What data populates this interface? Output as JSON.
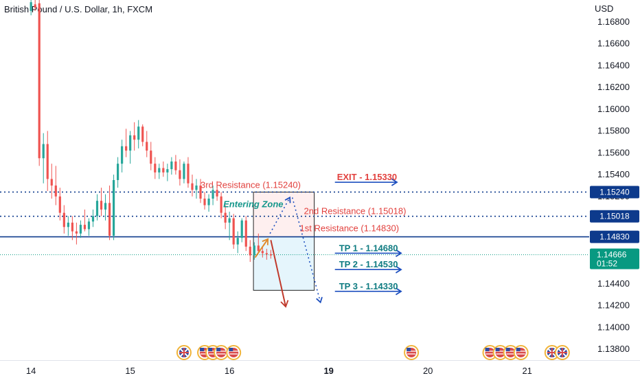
{
  "header": {
    "title": "British Pound / U.S. Dollar, 1h, FXCM"
  },
  "colors": {
    "up": "#26a69a",
    "down": "#ef5350",
    "navy": "#0d3a8c",
    "blue": "#1d4fbf",
    "red_text": "#e2413e",
    "teal_text": "#0f7c82",
    "price_tag": "#089981"
  },
  "chart_data": {
    "type": "candlestick",
    "currency_label": "USD",
    "ylim": [
      1.137,
      1.17
    ],
    "y_ticks": [
      "1.16800",
      "1.16600",
      "1.16400",
      "1.16200",
      "1.16000",
      "1.15800",
      "1.15600",
      "1.15400",
      "1.15200",
      "1.15000",
      "1.14800",
      "1.14600",
      "1.14400",
      "1.14200",
      "1.14000",
      "1.13800"
    ],
    "x_ticks": [
      {
        "label": "14",
        "x": 0
      },
      {
        "label": "15",
        "x": 24
      },
      {
        "label": "16",
        "x": 48
      },
      {
        "label": "19",
        "x": 72,
        "bold": true
      },
      {
        "label": "20",
        "x": 96
      },
      {
        "label": "21",
        "x": 120
      }
    ],
    "x_range": [
      -7.5,
      135
    ],
    "candles": [
      [
        1.169,
        1.17,
        1.1686,
        1.1698
      ],
      [
        1.1696,
        1.17,
        1.169,
        1.1693
      ],
      [
        1.1697,
        1.17,
        1.1548,
        1.1555
      ],
      [
        1.1555,
        1.1578,
        1.1532,
        1.1568
      ],
      [
        1.1568,
        1.158,
        1.1525,
        1.1536
      ],
      [
        1.1536,
        1.155,
        1.1518,
        1.153
      ],
      [
        1.153,
        1.1548,
        1.1512,
        1.152
      ],
      [
        1.152,
        1.1528,
        1.1498,
        1.1505
      ],
      [
        1.1505,
        1.1512,
        1.1486,
        1.1492
      ],
      [
        1.1492,
        1.1502,
        1.1484,
        1.1496
      ],
      [
        1.1496,
        1.1502,
        1.148,
        1.1488
      ],
      [
        1.1488,
        1.1496,
        1.1476,
        1.1486
      ],
      [
        1.1486,
        1.1498,
        1.1482,
        1.1494
      ],
      [
        1.1494,
        1.1508,
        1.1488,
        1.149
      ],
      [
        1.149,
        1.15,
        1.1484,
        1.1497
      ],
      [
        1.1497,
        1.1508,
        1.1492,
        1.1502
      ],
      [
        1.1502,
        1.1522,
        1.1498,
        1.1516
      ],
      [
        1.1516,
        1.1528,
        1.1502,
        1.1508
      ],
      [
        1.1508,
        1.1522,
        1.1498,
        1.1514
      ],
      [
        1.1514,
        1.153,
        1.148,
        1.1484
      ],
      [
        1.1484,
        1.154,
        1.148,
        1.1535
      ],
      [
        1.1535,
        1.1556,
        1.1528,
        1.155
      ],
      [
        1.155,
        1.1572,
        1.1542,
        1.1566
      ],
      [
        1.1566,
        1.1582,
        1.1556,
        1.1562
      ],
      [
        1.1562,
        1.158,
        1.155,
        1.1576
      ],
      [
        1.1576,
        1.1588,
        1.1562,
        1.1572
      ],
      [
        1.1572,
        1.159,
        1.1564,
        1.1584
      ],
      [
        1.1584,
        1.1586,
        1.1566,
        1.157
      ],
      [
        1.157,
        1.158,
        1.1556,
        1.1562
      ],
      [
        1.1562,
        1.157,
        1.1544,
        1.155
      ],
      [
        1.155,
        1.1556,
        1.1536,
        1.1542
      ],
      [
        1.1542,
        1.155,
        1.1536,
        1.1546
      ],
      [
        1.1546,
        1.1552,
        1.1538,
        1.1542
      ],
      [
        1.1542,
        1.155,
        1.1534,
        1.1545
      ],
      [
        1.1545,
        1.1556,
        1.154,
        1.1552
      ],
      [
        1.1552,
        1.1558,
        1.154,
        1.1544
      ],
      [
        1.1544,
        1.1554,
        1.153,
        1.1536
      ],
      [
        1.1536,
        1.1552,
        1.1532,
        1.155
      ],
      [
        1.155,
        1.1556,
        1.1528,
        1.1532
      ],
      [
        1.1532,
        1.154,
        1.152,
        1.1526
      ],
      [
        1.1526,
        1.1536,
        1.1518,
        1.153
      ],
      [
        1.153,
        1.1536,
        1.1514,
        1.1518
      ],
      [
        1.1518,
        1.1524,
        1.1508,
        1.1512
      ],
      [
        1.1512,
        1.1522,
        1.1506,
        1.1518
      ],
      [
        1.1518,
        1.153,
        1.1512,
        1.1526
      ],
      [
        1.1526,
        1.1534,
        1.1516,
        1.152
      ],
      [
        1.152,
        1.1524,
        1.15,
        1.1505
      ],
      [
        1.1505,
        1.1512,
        1.149,
        1.1496
      ],
      [
        1.1496,
        1.1506,
        1.148,
        1.15
      ],
      [
        1.15,
        1.1504,
        1.1472,
        1.1476
      ],
      [
        1.1476,
        1.1488,
        1.1468,
        1.1482
      ],
      [
        1.1482,
        1.15,
        1.1478,
        1.1498
      ],
      [
        1.1498,
        1.1502,
        1.147,
        1.1474
      ],
      [
        1.1474,
        1.148,
        1.146,
        1.1466
      ],
      [
        1.1466,
        1.1478,
        1.1462,
        1.1475
      ],
      [
        1.1475,
        1.1486,
        1.1468,
        1.147
      ],
      [
        1.147,
        1.1474,
        1.1464,
        1.1468
      ],
      [
        1.1468,
        1.1472,
        1.1462,
        1.1467
      ],
      [
        1.1467,
        1.1471,
        1.1463,
        1.1466
      ]
    ],
    "levels": [
      {
        "price": 1.1524,
        "label": "3rd Resistance (1.15240)",
        "tag": "1.15240",
        "style": "dotted"
      },
      {
        "price": 1.15018,
        "label": "2nd Resistance (1.15018)",
        "tag": "1.15018",
        "style": "dotted"
      },
      {
        "price": 1.1483,
        "label": "1st Resistance (1.14830)",
        "tag": "1.14830",
        "style": "solid"
      }
    ],
    "current_price": {
      "price": 1.14666,
      "label": "1.14666",
      "countdown": "01:52"
    },
    "zone_label": "Entering Zone",
    "exit": {
      "label": "EXIT - 1.15330",
      "price": 1.1533
    },
    "take_profits": [
      {
        "label": "TP 1 - 1.14680",
        "price": 1.1468
      },
      {
        "label": "TP 2 - 1.14530",
        "price": 1.1453
      },
      {
        "label": "TP 3 - 1.14330",
        "price": 1.1433
      }
    ],
    "events": [
      {
        "x": 37.0,
        "flag": "uk"
      },
      {
        "x": 42.0,
        "flag": "us"
      },
      {
        "x": 44.0,
        "flag": "us"
      },
      {
        "x": 46.0,
        "flag": "us"
      },
      {
        "x": 49.0,
        "flag": "us"
      },
      {
        "x": 92.0,
        "flag": "us"
      },
      {
        "x": 111.0,
        "flag": "us"
      },
      {
        "x": 113.5,
        "flag": "us"
      },
      {
        "x": 116.0,
        "flag": "us"
      },
      {
        "x": 118.5,
        "flag": "us"
      },
      {
        "x": 126.0,
        "flag": "uk"
      },
      {
        "x": 128.5,
        "flag": "uk"
      }
    ]
  }
}
